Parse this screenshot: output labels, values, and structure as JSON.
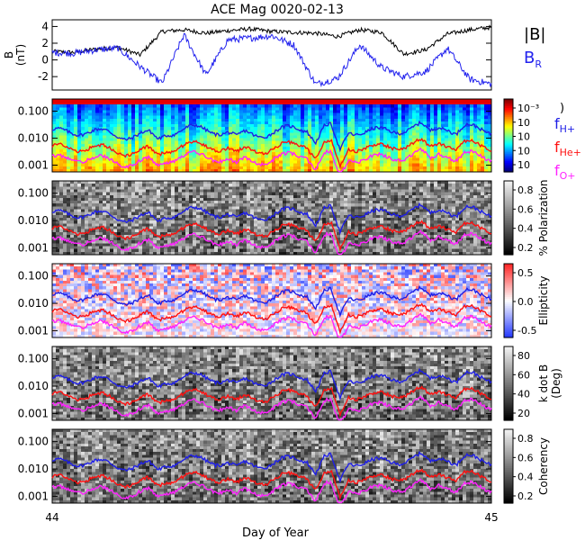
{
  "title": "ACE Mag 0020-02-13",
  "x_axis": {
    "label": "Day of Year",
    "range": [
      44,
      45
    ],
    "tick_labels": [
      "44",
      "45"
    ]
  },
  "colors": {
    "B_total": "#000000",
    "B_R": "#2222ee",
    "f_H": "#1e1ee6",
    "f_He": "#ff1010",
    "f_O": "#ff22ff"
  },
  "chart_data": [
    {
      "type": "line",
      "panel": "magnetic-field",
      "ylabel_lines": [
        "B",
        "(nT)"
      ],
      "ylim": [
        -3.6,
        4.8
      ],
      "ytick_labels": [
        "4",
        "2",
        "0",
        "-2"
      ],
      "legend": [
        {
          "label": "|B|",
          "sub": "",
          "color": "#000000"
        },
        {
          "label": "B",
          "sub": "R",
          "color": "#2222ee"
        }
      ],
      "series": [
        {
          "name": "|B|",
          "x": [
            44.0,
            44.05,
            44.1,
            44.15,
            44.2,
            44.25,
            44.3,
            44.35,
            44.4,
            44.45,
            44.5,
            44.55,
            44.6,
            44.65,
            44.7,
            44.75,
            44.8,
            44.85,
            44.9,
            44.95,
            45.0
          ],
          "y": [
            1.0,
            0.9,
            1.3,
            1.5,
            0.6,
            3.4,
            3.6,
            3.2,
            3.5,
            3.7,
            3.4,
            3.3,
            3.2,
            2.8,
            3.6,
            3.3,
            0.7,
            1.2,
            3.1,
            3.6,
            3.9
          ]
        },
        {
          "name": "B_R",
          "x": [
            44.0,
            44.05,
            44.1,
            44.15,
            44.2,
            44.25,
            44.3,
            44.35,
            44.4,
            44.45,
            44.5,
            44.55,
            44.6,
            44.65,
            44.7,
            44.75,
            44.8,
            44.85,
            44.9,
            44.95,
            45.0
          ],
          "y": [
            0.9,
            0.8,
            1.2,
            1.4,
            -0.8,
            -2.8,
            3.0,
            -1.8,
            2.4,
            2.6,
            2.9,
            1.8,
            -2.9,
            -2.2,
            1.8,
            -0.9,
            -2.0,
            -1.4,
            1.4,
            -2.3,
            -2.9
          ]
        }
      ]
    },
    {
      "type": "heatmap",
      "panel": "power-spectrum",
      "ylabel": "",
      "ytick_labels": [
        "0.100",
        "0.010",
        "0.001"
      ],
      "colorbar_labels": [
        "10⁻³",
        "10",
        "10",
        "10",
        "10"
      ],
      "legend": [
        {
          "label": "f",
          "sub": "H+",
          "color": "#1e1ee6"
        },
        {
          "label": "f",
          "sub": "He+",
          "color": "#ff1010"
        },
        {
          "label": "f",
          "sub": "O+",
          "color": "#ff22ff"
        }
      ],
      "colorbar_note": ")"
    },
    {
      "type": "heatmap",
      "panel": "polarization",
      "ylabel": "% Polarization",
      "ytick_labels": [
        "0.100",
        "0.010",
        "0.001"
      ],
      "colorbar_labels": [
        "0.8",
        "0.6",
        "0.4",
        "0.2"
      ]
    },
    {
      "type": "heatmap",
      "panel": "ellipticity",
      "ylabel": "Ellipticity",
      "ytick_labels": [
        "0.100",
        "0.010",
        "0.001"
      ],
      "colorbar_labels": [
        "0.5",
        "0.0",
        "-0.5"
      ]
    },
    {
      "type": "heatmap",
      "panel": "k-dot-b",
      "ylabel": "k dot B",
      "ylabel2": "(Deg)",
      "ytick_labels": [
        "0.100",
        "0.010",
        "0.001"
      ],
      "colorbar_labels": [
        "80",
        "60",
        "40",
        "20"
      ]
    },
    {
      "type": "heatmap",
      "panel": "coherency",
      "ylabel": "Coherency",
      "ytick_labels": [
        "0.100",
        "0.010",
        "0.001"
      ],
      "colorbar_labels": [
        "0.8",
        "0.6",
        "0.4",
        "0.2"
      ]
    }
  ]
}
